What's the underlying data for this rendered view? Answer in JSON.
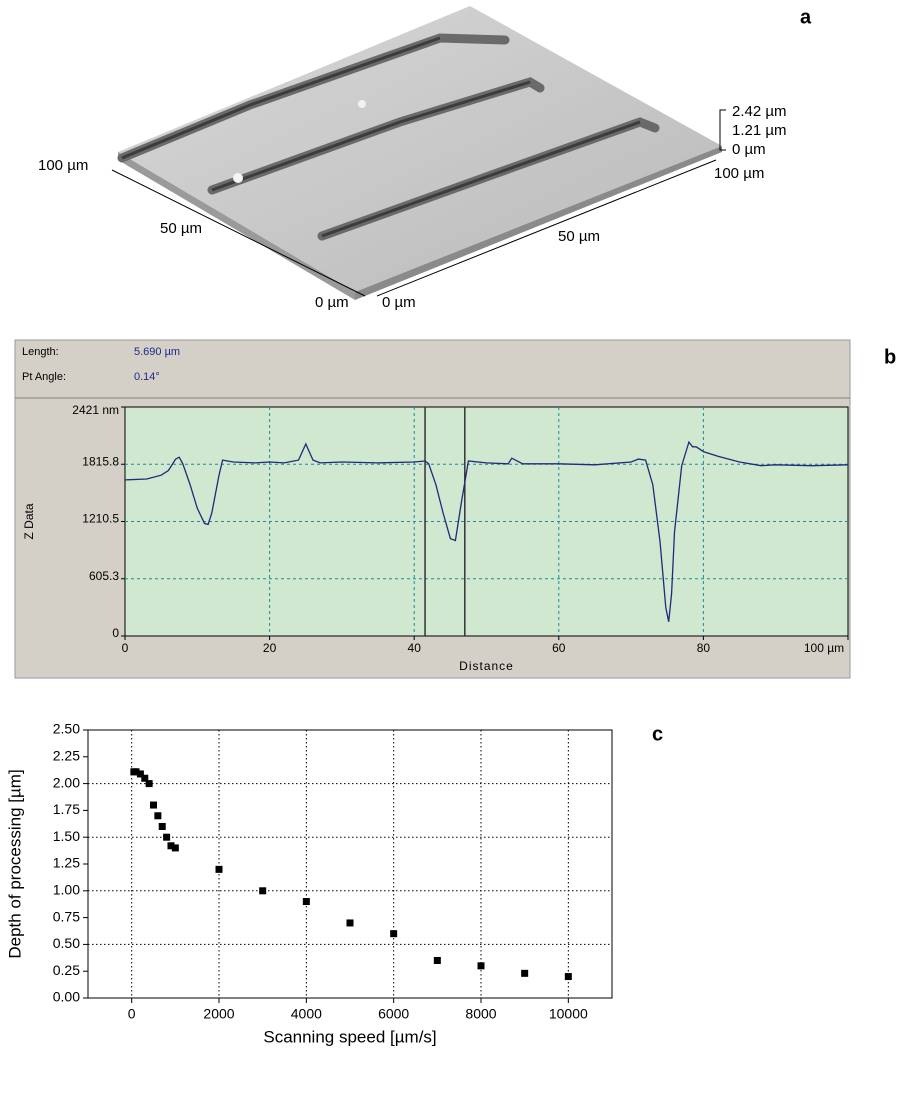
{
  "chart_data": [
    {
      "type": "surface3d",
      "label": "a",
      "left_axis_labels": [
        "100 µm",
        "50 µm",
        "0 µm"
      ],
      "right_axis_labels": [
        "0 µm",
        "50 µm",
        "100 µm"
      ],
      "z_axis_labels": [
        "2.42 µm",
        "1.21 µm",
        "0 µm"
      ]
    },
    {
      "type": "line",
      "label": "b",
      "info": [
        {
          "name": "Length:",
          "value": "5.690 µm"
        },
        {
          "name": "Pt Angle:",
          "value": "0.14°"
        }
      ],
      "xlabel": "Distance",
      "ylabel": "Z Data",
      "x": [
        0,
        3,
        5,
        6,
        7,
        7.5,
        8,
        9,
        10,
        11,
        11.5,
        12,
        13,
        13.5,
        15,
        18,
        20,
        22,
        24,
        25,
        26,
        27,
        30,
        35,
        40,
        41.5,
        42,
        43,
        44,
        45,
        45.7,
        46.5,
        47.5,
        50,
        53,
        53.5,
        55,
        60,
        65,
        70,
        71,
        72,
        73,
        74,
        74.8,
        75.2,
        75.6,
        76,
        77,
        78,
        78.5,
        79,
        80,
        82,
        85,
        88,
        90,
        95,
        100
      ],
      "values": [
        1650,
        1660,
        1700,
        1750,
        1870,
        1890,
        1820,
        1600,
        1350,
        1190,
        1180,
        1300,
        1700,
        1860,
        1840,
        1830,
        1840,
        1830,
        1860,
        2030,
        1860,
        1830,
        1840,
        1830,
        1840,
        1850,
        1820,
        1600,
        1300,
        1030,
        1010,
        1400,
        1850,
        1830,
        1820,
        1880,
        1820,
        1820,
        1810,
        1840,
        1870,
        1860,
        1600,
        1000,
        300,
        150,
        450,
        1100,
        1800,
        2050,
        2000,
        2000,
        1950,
        1900,
        1840,
        1800,
        1810,
        1800,
        1810
      ],
      "color": "#1f2a7a",
      "background": "#cfe8cf",
      "grid_color": "#1b8f8f",
      "cursors": [
        41.5,
        47
      ],
      "xlim": [
        0,
        100
      ],
      "ylim": [
        0,
        2421
      ],
      "xticks": [
        0,
        20,
        40,
        60,
        80,
        {
          "value": 100,
          "label": "100 µm"
        }
      ],
      "yticks": [
        0,
        605.3,
        1210.5,
        1815.8,
        {
          "value": 2421,
          "label": "2421 nm"
        }
      ],
      "grid": true
    },
    {
      "type": "scatter",
      "label": "c",
      "xlabel": "Scanning speed [µm/s]",
      "ylabel": "Depth of processing [µm]",
      "x": [
        50,
        100,
        200,
        300,
        400,
        500,
        600,
        700,
        800,
        900,
        1000,
        2000,
        3000,
        4000,
        5000,
        6000,
        7000,
        8000,
        9000,
        10000
      ],
      "values": [
        2.11,
        2.11,
        2.09,
        2.05,
        2.0,
        1.8,
        1.7,
        1.6,
        1.5,
        1.42,
        1.4,
        1.2,
        1.0,
        0.9,
        0.7,
        0.6,
        0.35,
        0.3,
        0.23,
        0.2
      ],
      "color": "#000000",
      "xlim": [
        -1000,
        11000
      ],
      "ylim": [
        0,
        2.5
      ],
      "xticks": [
        0,
        2000,
        4000,
        6000,
        8000,
        10000
      ],
      "yticks": [
        {
          "value": 0,
          "label": "0.00"
        },
        {
          "value": 0.25,
          "label": "0.25"
        },
        {
          "value": 0.5,
          "label": "0.50"
        },
        {
          "value": 0.75,
          "label": "0.75"
        },
        {
          "value": 1,
          "label": "1.00"
        },
        {
          "value": 1.25,
          "label": "1.25"
        },
        {
          "value": 1.5,
          "label": "1.50"
        },
        {
          "value": 1.75,
          "label": "1.75"
        },
        {
          "value": 2,
          "label": "2.00"
        },
        {
          "value": 2.25,
          "label": "2.25"
        },
        {
          "value": 2.5,
          "label": "2.50"
        }
      ],
      "xgrid": [
        0,
        2000,
        4000,
        6000,
        8000,
        10000
      ],
      "ygrid": [
        0.5,
        1,
        1.5,
        2
      ]
    }
  ]
}
